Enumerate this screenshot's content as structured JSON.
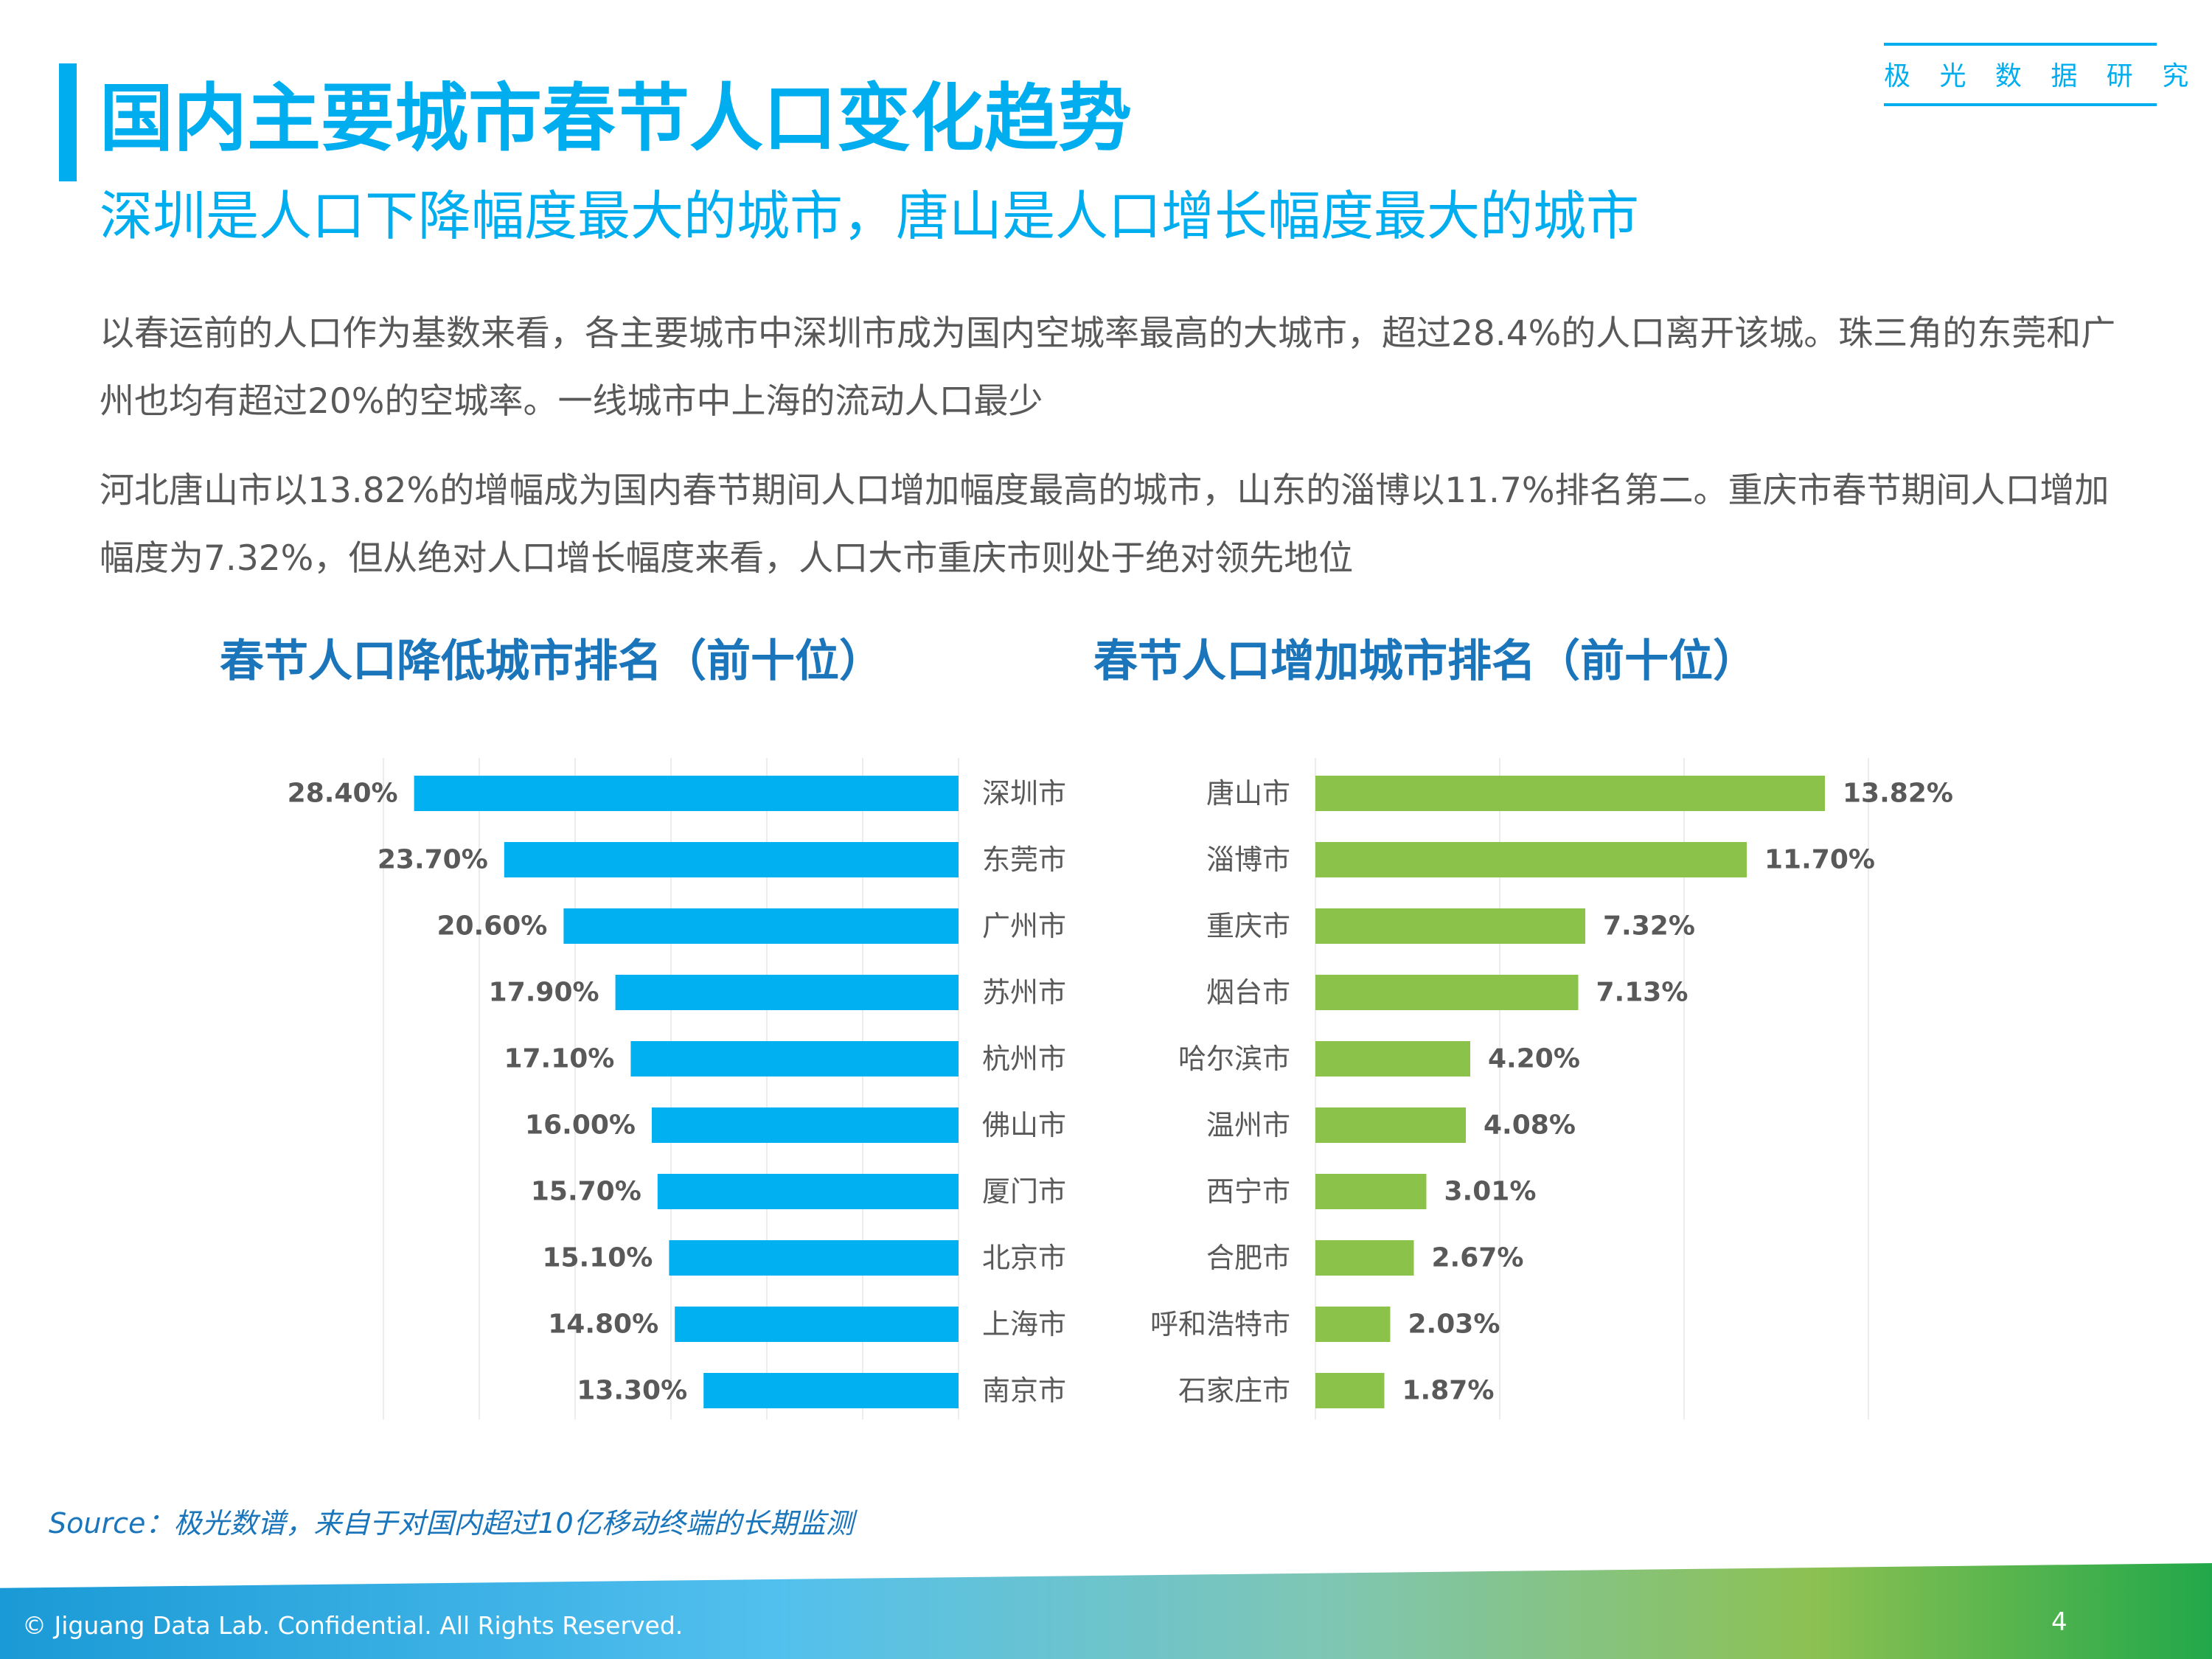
{
  "header": {
    "brand": "极 光 数 据 研 究 院",
    "title": "国内主要城市春节人口变化趋势",
    "subtitle": "深圳是人口下降幅度最大的城市，唐山是人口增长幅度最大的城市"
  },
  "body": {
    "paragraph1": "以春运前的人口作为基数来看，各主要城市中深圳市成为国内空城率最高的大城市，超过28.4%的人口离开该城。珠三角的东莞和广州也均有超过20%的空城率。一线城市中上海的流动人口最少",
    "paragraph2": "河北唐山市以13.82%的增幅成为国内春节期间人口增加幅度最高的城市，山东的淄博以11.7%排名第二。重庆市春节期间人口增加幅度为7.32%，但从绝对人口增长幅度来看，人口大市重庆市则处于绝对领先地位"
  },
  "charts": {
    "left_title": "春节人口降低城市排名（前十位）",
    "right_title": "春节人口增加城市排名（前十位）"
  },
  "chart_data": [
    {
      "type": "bar",
      "orientation": "horizontal",
      "direction": "right-to-left",
      "title": "春节人口降低城市排名（前十位）",
      "categories": [
        "深圳市",
        "东莞市",
        "广州市",
        "苏州市",
        "杭州市",
        "佛山市",
        "厦门市",
        "北京市",
        "上海市",
        "南京市"
      ],
      "values": [
        28.4,
        23.7,
        20.6,
        17.9,
        17.1,
        16.0,
        15.7,
        15.1,
        14.8,
        13.3
      ],
      "labels": [
        "28.40%",
        "23.70%",
        "20.60%",
        "17.90%",
        "17.10%",
        "16.00%",
        "15.70%",
        "15.10%",
        "14.80%",
        "13.30%"
      ],
      "unit": "%",
      "xlim": [
        0,
        30
      ],
      "grid": true,
      "color": "#00b0f0"
    },
    {
      "type": "bar",
      "orientation": "horizontal",
      "title": "春节人口增加城市排名（前十位）",
      "categories": [
        "唐山市",
        "淄博市",
        "重庆市",
        "烟台市",
        "哈尔滨市",
        "温州市",
        "西宁市",
        "合肥市",
        "呼和浩特市",
        "石家庄市"
      ],
      "values": [
        13.82,
        11.7,
        7.32,
        7.13,
        4.2,
        4.08,
        3.01,
        2.67,
        2.03,
        1.87
      ],
      "labels": [
        "13.82%",
        "11.70%",
        "7.32%",
        "7.13%",
        "4.20%",
        "4.08%",
        "3.01%",
        "2.67%",
        "2.03%",
        "1.87%"
      ],
      "unit": "%",
      "xlim": [
        0,
        15
      ],
      "grid": true,
      "color": "#8bc34a"
    }
  ],
  "footer": {
    "source": "Source：极光数谱，来自于对国内超过10亿移动终端的长期监测",
    "copyright": "© Jiguang Data Lab. Confidential. All Rights Reserved.",
    "page": "4"
  }
}
